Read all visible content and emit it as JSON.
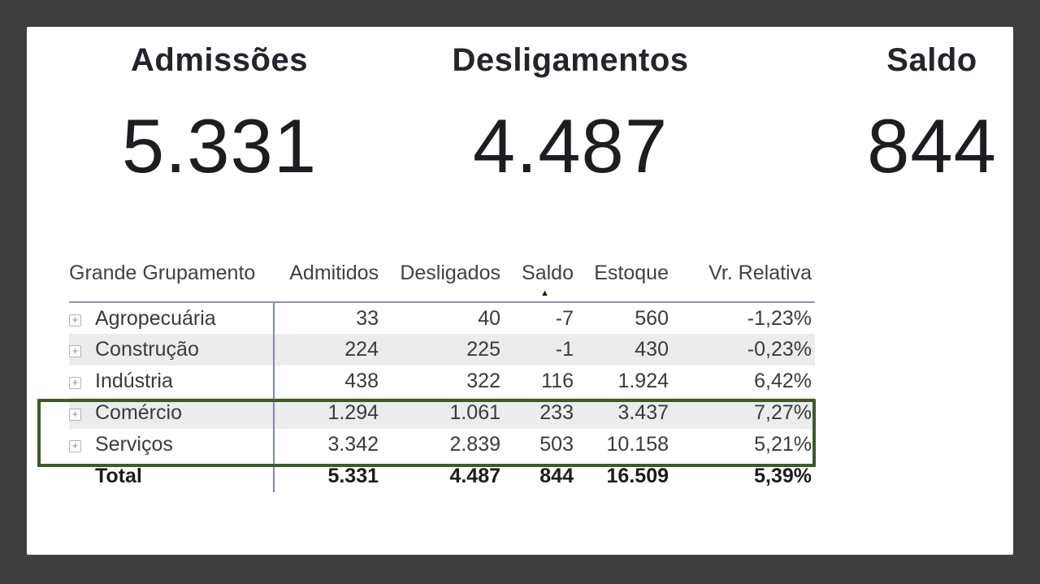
{
  "page": {
    "frame_bg": "#3e3e3e",
    "panel_bg": "#ffffff"
  },
  "kpi_cards": [
    {
      "label": "Admissões",
      "value": "5.331"
    },
    {
      "label": "Desligamentos",
      "value": "4.487"
    },
    {
      "label": "Saldo",
      "value": "844"
    }
  ],
  "matrix": {
    "expand_icon": "+",
    "sort_icon": "▲",
    "divider_color": "#7e88ad",
    "header_rule_color": "#8e96b4",
    "banded_row_color": "#ececec",
    "columns": [
      {
        "key": "group",
        "label": "Grande Grupamento",
        "align": "left",
        "sorted": false
      },
      {
        "key": "admitidos",
        "label": "Admitidos",
        "align": "right",
        "sorted": false
      },
      {
        "key": "desligados",
        "label": "Desligados",
        "align": "right",
        "sorted": false
      },
      {
        "key": "saldo",
        "label": "Saldo",
        "align": "right",
        "sorted": true,
        "sort_direction": "ascending"
      },
      {
        "key": "estoque",
        "label": "Estoque",
        "align": "right",
        "sorted": false
      },
      {
        "key": "vr_relativa",
        "label": "Vr. Relativa",
        "align": "right",
        "sorted": false
      }
    ],
    "rows": [
      {
        "group": "Agropecuária",
        "admitidos": "33",
        "desligados": "40",
        "saldo": "-7",
        "estoque": "560",
        "vr_relativa": "-1,23%",
        "banded": false,
        "highlighted": false
      },
      {
        "group": "Construção",
        "admitidos": "224",
        "desligados": "225",
        "saldo": "-1",
        "estoque": "430",
        "vr_relativa": "-0,23%",
        "banded": true,
        "highlighted": false
      },
      {
        "group": "Indústria",
        "admitidos": "438",
        "desligados": "322",
        "saldo": "116",
        "estoque": "1.924",
        "vr_relativa": "6,42%",
        "banded": false,
        "highlighted": false
      },
      {
        "group": "Comércio",
        "admitidos": "1.294",
        "desligados": "1.061",
        "saldo": "233",
        "estoque": "3.437",
        "vr_relativa": "7,27%",
        "banded": true,
        "highlighted": true
      },
      {
        "group": "Serviços",
        "admitidos": "3.342",
        "desligados": "2.839",
        "saldo": "503",
        "estoque": "10.158",
        "vr_relativa": "5,21%",
        "banded": false,
        "highlighted": true
      }
    ],
    "total_row": {
      "group": "Total",
      "admitidos": "5.331",
      "desligados": "4.487",
      "saldo": "844",
      "estoque": "16.509",
      "vr_relativa": "5,39%"
    }
  },
  "highlight": {
    "border_color": "#40582a"
  },
  "chart_data": {
    "type": "table",
    "title": "",
    "kpis": [
      {
        "label": "Admissões",
        "value": 5331
      },
      {
        "label": "Desligamentos",
        "value": 4487
      },
      {
        "label": "Saldo",
        "value": 844
      }
    ],
    "columns": [
      "Grande Grupamento",
      "Admitidos",
      "Desligados",
      "Saldo",
      "Estoque",
      "Vr. Relativa"
    ],
    "rows": [
      [
        "Agropecuária",
        33,
        40,
        -7,
        560,
        -1.23
      ],
      [
        "Construção",
        224,
        225,
        -1,
        430,
        -0.23
      ],
      [
        "Indústria",
        438,
        322,
        116,
        1924,
        6.42
      ],
      [
        "Comércio",
        1294,
        1061,
        233,
        3437,
        7.27
      ],
      [
        "Serviços",
        3342,
        2839,
        503,
        10158,
        5.21
      ]
    ],
    "total": [
      "Total",
      5331,
      4487,
      844,
      16509,
      5.39
    ],
    "sorted_by": "Saldo",
    "sort_direction": "ascending",
    "vr_relativa_unit": "%"
  }
}
